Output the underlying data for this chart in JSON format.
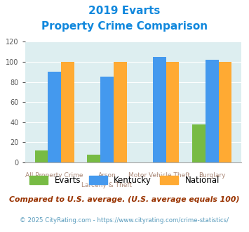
{
  "title_line1": "2019 Evarts",
  "title_line2": "Property Crime Comparison",
  "cat_labels_row1": [
    "All Property Crime",
    "Arson",
    "Motor Vehicle Theft",
    "Burglary"
  ],
  "cat_labels_row2": [
    "",
    "Larceny & Theft",
    "",
    ""
  ],
  "evarts": [
    12,
    8,
    0,
    38
  ],
  "kentucky": [
    90,
    85,
    105,
    102
  ],
  "national": [
    100,
    100,
    100,
    100
  ],
  "evarts_color": "#77bb44",
  "kentucky_color": "#4499ee",
  "national_color": "#ffaa33",
  "bg_color": "#ddeef0",
  "title_color": "#1188dd",
  "xlabel_color": "#aa8877",
  "ylim": [
    0,
    120
  ],
  "yticks": [
    0,
    20,
    40,
    60,
    80,
    100,
    120
  ],
  "bar_width": 0.25,
  "legend_labels": [
    "Evarts",
    "Kentucky",
    "National"
  ],
  "footnote1": "Compared to U.S. average. (U.S. average equals 100)",
  "footnote2": "© 2025 CityRating.com - https://www.cityrating.com/crime-statistics/",
  "footnote1_color": "#993300",
  "footnote2_color": "#5599bb"
}
